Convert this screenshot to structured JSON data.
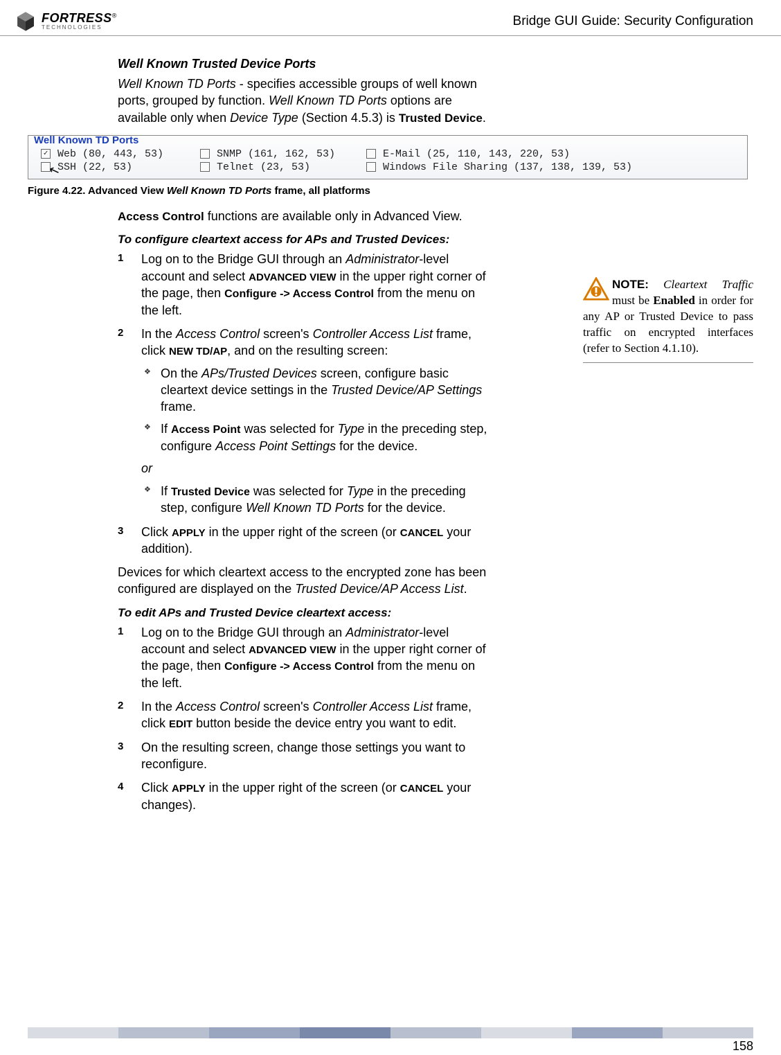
{
  "header": {
    "logo_main": "FORTRESS",
    "logo_reg": "®",
    "logo_sub": "TECHNOLOGIES",
    "title": "Bridge GUI Guide: Security Configuration"
  },
  "section": {
    "title": "Well Known Trusted Device Ports",
    "intro_prefix": "Well Known TD Ports",
    "intro_mid1": " - specifies accessible groups of well known ports, grouped by function. ",
    "intro_ital2": "Well Known TD Ports",
    "intro_mid2": " options are available only when ",
    "intro_ital3": "Device Type",
    "intro_mid3": " (Section 4.5.3) is ",
    "intro_bold": "Trusted Device",
    "intro_end": "."
  },
  "panel": {
    "legend": "Well Known TD Ports",
    "ports": [
      {
        "label": "Web (80, 443, 53)",
        "checked": true
      },
      {
        "label": "SNMP (161, 162, 53)",
        "checked": false
      },
      {
        "label": "E-Mail (25, 110, 143, 220, 53)",
        "checked": false
      },
      {
        "label": "SSH (22, 53)",
        "checked": false
      },
      {
        "label": "Telnet (23, 53)",
        "checked": false
      },
      {
        "label": "Windows File Sharing (137, 138, 139, 53)",
        "checked": false
      }
    ]
  },
  "figcap": {
    "prefix": "Figure 4.22. Advanced View ",
    "ital": "Well Known TD Ports",
    "suffix": " frame, all platforms"
  },
  "para2": {
    "bold": "Access Control",
    "rest": " functions are available only in Advanced View."
  },
  "proc1": {
    "title": "To configure cleartext access for APs and Trusted Devices:",
    "steps": {
      "s1": {
        "t1": "Log on to the Bridge GUI through an ",
        "i1": "Administrator",
        "t2": "-level account and select ",
        "sc1": "ADVANCED VIEW",
        "t3": " in the upper right corner of the page, then ",
        "b1": "Configure -> Access Control",
        "t4": " from the menu on the left."
      },
      "s2": {
        "t1": "In the ",
        "i1": "Access Control",
        "t2": " screen's ",
        "i2": "Controller Access List",
        "t3": " frame, click ",
        "sc1": "NEW TD/AP",
        "t4": ", and on the resulting screen:",
        "sub": {
          "a": {
            "t1": "On the ",
            "i1": "APs/Trusted Devices",
            "t2": " screen, configure basic cleartext device settings in the ",
            "i2": "Trusted Device/AP Settings",
            "t3": " frame."
          },
          "b": {
            "t1": "If ",
            "b1": "Access Point",
            "t2": " was selected for ",
            "i1": "Type",
            "t3": " in the preceding step, configure ",
            "i2": "Access Point Settings",
            "t4": " for the device."
          },
          "or": "or",
          "c": {
            "t1": "If ",
            "b1": "Trusted Device",
            "t2": " was selected for ",
            "i1": "Type",
            "t3": " in the preceding step, configure ",
            "i2": "Well Known TD Ports",
            "t4": " for the device."
          }
        }
      },
      "s3": {
        "t1": "Click ",
        "sc1": "APPLY",
        "t2": " in the upper right of the screen (or ",
        "sc2": "CANCEL",
        "t3": " your addition)."
      }
    }
  },
  "para3": {
    "t1": "Devices for which cleartext access to the encrypted zone has been configured are displayed on the ",
    "i1": "Trusted Device/AP Access List",
    "t2": "."
  },
  "proc2": {
    "title": "To edit APs and Trusted Device cleartext access:",
    "steps": {
      "s1": {
        "t1": "Log on to the Bridge GUI through an ",
        "i1": "Administrator",
        "t2": "-level account and select ",
        "sc1": "ADVANCED VIEW",
        "t3": " in the upper right corner of the page, then ",
        "b1": "Configure -> Access Control",
        "t4": " from the menu on the left."
      },
      "s2": {
        "t1": "In the ",
        "i1": "Access Control",
        "t2": " screen's ",
        "i2": "Controller Access List",
        "t3": " frame, click ",
        "sc1": "EDIT",
        "t4": " button beside the device entry you want to edit."
      },
      "s3": {
        "t1": "On the resulting screen, change those settings you want to reconfigure."
      },
      "s4": {
        "t1": "Click ",
        "sc1": "APPLY",
        "t2": " in the upper right of the screen (or ",
        "sc2": "CANCEL",
        "t3": " your changes)."
      }
    }
  },
  "note": {
    "label": "NOTE:",
    "i1": "Cleartext Traffic",
    "t1": " must be ",
    "b1": "Enabled",
    "t2": " in order for any AP or Trusted Device to pass traffic on encrypted interfaces (refer to Section 4.1.10)."
  },
  "footer": {
    "page": "158",
    "colors": [
      "#d9dce3",
      "#b8c0d0",
      "#9aa6c0",
      "#7a88aa",
      "#b8c0d0",
      "#d9dce3",
      "#9aa6c0",
      "#c9ced9"
    ]
  }
}
